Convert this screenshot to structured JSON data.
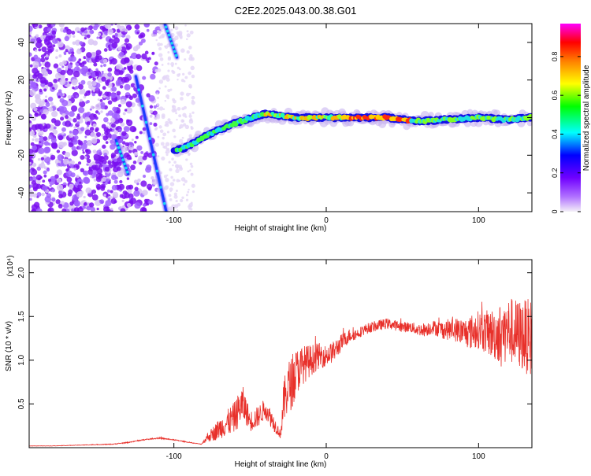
{
  "title": "C2E2.2025.043.00.38.G01",
  "chart_data": [
    {
      "type": "heatmap",
      "xlabel": "Height of straight line (km)",
      "ylabel": "Frequency (Hz)",
      "xlim": [
        -195,
        135
      ],
      "ylim": [
        -50,
        50
      ],
      "x_ticks": [
        -100,
        0,
        100
      ],
      "y_ticks": [
        -40,
        -20,
        0,
        20,
        40
      ],
      "colorbar": {
        "label": "Normalized spectral amplitude",
        "range": [
          0,
          0.97
        ],
        "ticks": [
          0,
          0.2,
          0.4,
          0.6,
          0.8
        ],
        "colors": [
          "#f4f0f8",
          "#8000ff",
          "#0000ff",
          "#00ffff",
          "#00ff00",
          "#ffff00",
          "#ff8000",
          "#ff0000",
          "#ff00ff"
        ]
      },
      "features": [
        {
          "name": "",
          "kind": "main-line",
          "points": [
            [
              -100,
              -18
            ],
            [
              -90,
              -15
            ],
            [
              -80,
              -10
            ],
            [
              -60,
              -3
            ],
            [
              -40,
              2
            ],
            [
              -20,
              0
            ],
            [
              0,
              0
            ],
            [
              20,
              0
            ],
            [
              40,
              0
            ],
            [
              60,
              -2
            ],
            [
              80,
              -1
            ],
            [
              100,
              0
            ],
            [
              120,
              -1
            ],
            [
              135,
              0
            ]
          ]
        },
        {
          "name": "",
          "kind": "diagonal-streak",
          "points": [
            [
              -125,
              22
            ],
            [
              -105,
              -50
            ]
          ]
        },
        {
          "name": "",
          "kind": "diagonal-streak",
          "points": [
            [
              -106,
              50
            ],
            [
              -98,
              32
            ]
          ]
        },
        {
          "name": "",
          "kind": "diagonal-streak",
          "points": [
            [
              -138,
              -12
            ],
            [
              -130,
              -30
            ]
          ]
        }
      ]
    },
    {
      "type": "line",
      "xlabel": "Height of straight line (km)",
      "ylabel": "SNR (10 * v/v)",
      "y_scale_label": "(x10⁴)",
      "xlim": [
        -195,
        135
      ],
      "ylim": [
        0,
        2.15
      ],
      "x_ticks": [
        -100,
        0,
        100
      ],
      "y_ticks": [
        0.5,
        1.0,
        1.5,
        2.0
      ],
      "color": "#e8302a",
      "series": [
        {
          "name": "",
          "x": [
            -195,
            -180,
            -160,
            -140,
            -130,
            -120,
            -110,
            -100,
            -90,
            -82,
            -78,
            -75,
            -70,
            -65,
            -60,
            -57,
            -55,
            -52,
            -50,
            -45,
            -40,
            -35,
            -30,
            -28,
            -25,
            -22,
            -20,
            -18,
            -15,
            -10,
            -5,
            0,
            5,
            10,
            15,
            20,
            25,
            30,
            35,
            40,
            45,
            50,
            55,
            60,
            65,
            70,
            75,
            80,
            85,
            90,
            95,
            100,
            105,
            110,
            115,
            120,
            125,
            130,
            135
          ],
          "y": [
            0.02,
            0.02,
            0.03,
            0.04,
            0.06,
            0.09,
            0.11,
            0.09,
            0.06,
            0.04,
            0.12,
            0.15,
            0.22,
            0.28,
            0.35,
            0.45,
            0.5,
            0.4,
            0.3,
            0.35,
            0.45,
            0.3,
            0.15,
            0.5,
            0.7,
            0.75,
            0.85,
            0.9,
            0.95,
            1.0,
            1.05,
            1.05,
            1.1,
            1.2,
            1.28,
            1.3,
            1.35,
            1.38,
            1.4,
            1.42,
            1.4,
            1.38,
            1.38,
            1.35,
            1.35,
            1.38,
            1.35,
            1.35,
            1.35,
            1.32,
            1.32,
            1.35,
            1.32,
            1.3,
            1.3,
            1.35,
            1.3,
            1.28,
            1.25
          ],
          "noise": [
            0.002,
            0.002,
            0.003,
            0.004,
            0.005,
            0.006,
            0.008,
            0.006,
            0.004,
            0.003,
            0.05,
            0.08,
            0.12,
            0.15,
            0.18,
            0.2,
            0.22,
            0.15,
            0.12,
            0.12,
            0.12,
            0.1,
            0.05,
            0.25,
            0.3,
            0.3,
            0.28,
            0.25,
            0.22,
            0.18,
            0.15,
            0.12,
            0.12,
            0.1,
            0.08,
            0.06,
            0.06,
            0.06,
            0.06,
            0.06,
            0.06,
            0.06,
            0.06,
            0.07,
            0.08,
            0.08,
            0.1,
            0.12,
            0.14,
            0.16,
            0.2,
            0.22,
            0.25,
            0.3,
            0.35,
            0.38,
            0.4,
            0.42,
            0.45
          ]
        }
      ]
    }
  ]
}
